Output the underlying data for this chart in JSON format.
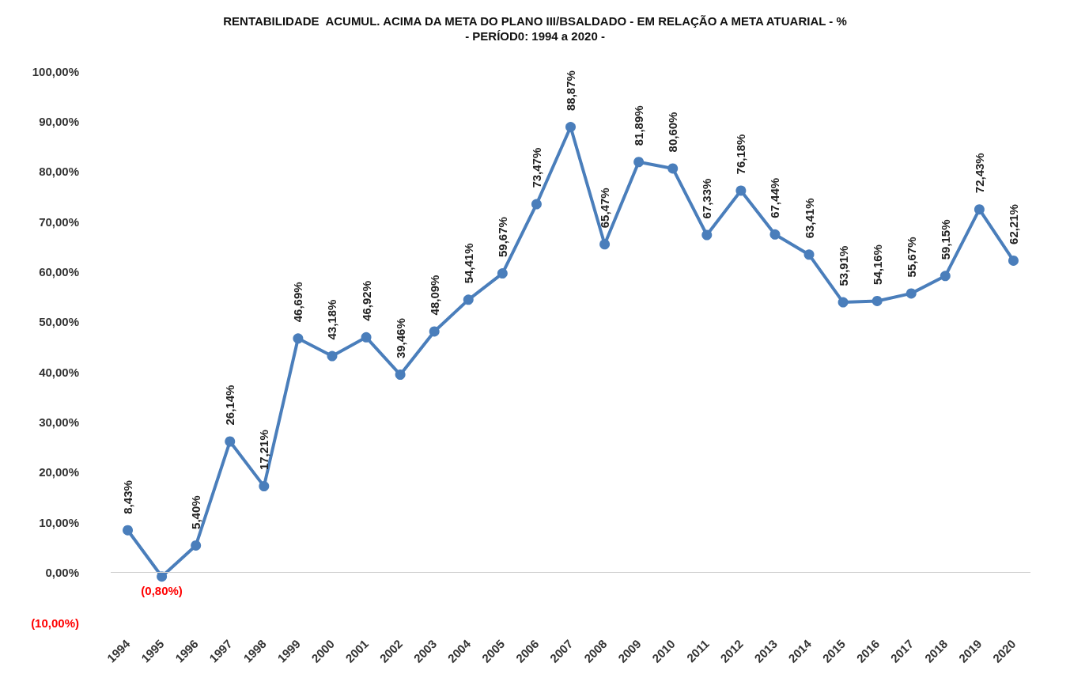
{
  "chart_data": {
    "type": "line",
    "title": "RENTABILIDADE  ACUMUL. ACIMA DA META DO PLANO III/BSALDADO - EM RELAÇÃO A META ATUARIAL - %",
    "subtitle": "- PERÍOD0: 1994 a 2020 -",
    "categories": [
      "1994",
      "1995",
      "1996",
      "1997",
      "1998",
      "1999",
      "2000",
      "2001",
      "2002",
      "2003",
      "2004",
      "2005",
      "2006",
      "2007",
      "2008",
      "2009",
      "2010",
      "2011",
      "2012",
      "2013",
      "2014",
      "2015",
      "2016",
      "2017",
      "2018",
      "2019",
      "2020"
    ],
    "series": [
      {
        "color": "#4a7ebb",
        "values": [
          8.43,
          -0.8,
          5.4,
          26.14,
          17.21,
          46.69,
          43.18,
          46.92,
          39.46,
          48.09,
          54.41,
          59.67,
          73.47,
          88.87,
          65.47,
          81.89,
          80.6,
          67.33,
          76.18,
          67.44,
          63.41,
          53.91,
          54.16,
          55.67,
          59.15,
          72.43,
          62.21
        ],
        "value_labels": [
          "8,43%",
          "(0,80%)",
          "5,40%",
          "26,14%",
          "17,21%",
          "46,69%",
          "43,18%",
          "46,92%",
          "39,46%",
          "48,09%",
          "54,41%",
          "59,67%",
          "73,47%",
          "88,87%",
          "65,47%",
          "81,89%",
          "80,60%",
          "67,33%",
          "76,18%",
          "67,44%",
          "63,41%",
          "53,91%",
          "54,16%",
          "55,67%",
          "59,15%",
          "72,43%",
          "62,21%"
        ]
      }
    ],
    "ylim": [
      -10,
      100
    ],
    "yticks": [
      {
        "value": -10,
        "label": "(10,00%)"
      },
      {
        "value": 0,
        "label": "0,00%"
      },
      {
        "value": 10,
        "label": "10,00%"
      },
      {
        "value": 20,
        "label": "20,00%"
      },
      {
        "value": 30,
        "label": "30,00%"
      },
      {
        "value": 40,
        "label": "40,00%"
      },
      {
        "value": 50,
        "label": "50,00%"
      },
      {
        "value": 60,
        "label": "60,00%"
      },
      {
        "value": 70,
        "label": "70,00%"
      },
      {
        "value": 80,
        "label": "80,00%"
      },
      {
        "value": 90,
        "label": "90,00%"
      },
      {
        "value": 100,
        "label": "100,00%"
      }
    ],
    "ref_lines": [
      {
        "axis": "y",
        "value": 0,
        "color": "#d0d0d0"
      }
    ],
    "grid": false,
    "marker": "circle",
    "line_style": "solid"
  }
}
